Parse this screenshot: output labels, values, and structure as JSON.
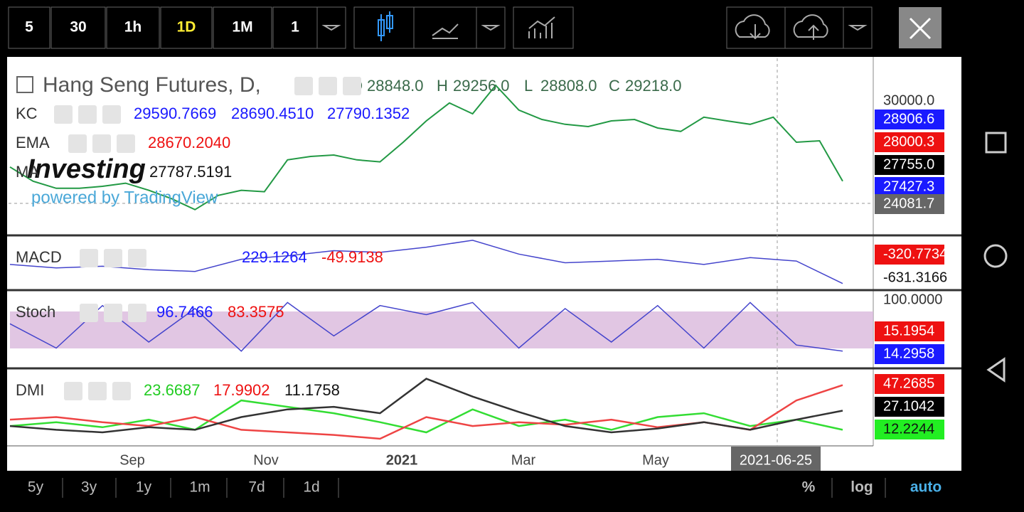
{
  "toolbar": {
    "intervals": [
      "5",
      "30",
      "1h",
      "1D",
      "1M",
      "1"
    ]
  },
  "legend": {
    "symbol": "Hang Seng Futures, D,",
    "ohlc": [
      [
        "O",
        "28848.0"
      ],
      [
        "H",
        "29256.0"
      ],
      [
        "L",
        "28808.0"
      ],
      [
        "C",
        "29218.0"
      ]
    ]
  },
  "indicators": {
    "kc": {
      "name": "KC",
      "values": [
        "29590.7669",
        "28690.4510",
        "27790.1352"
      ]
    },
    "ema": {
      "name": "EMA",
      "values": [
        "28670.2040"
      ]
    },
    "ma": {
      "name": "MA",
      "values": [
        "27787.5191"
      ]
    },
    "macd": {
      "name": "MACD",
      "values": [
        "229.1264",
        "-49.9138"
      ]
    },
    "stoch": {
      "name": "Stoch",
      "values": [
        "96.7466",
        "83.3575"
      ]
    },
    "dmi": {
      "name": "DMI",
      "values": [
        "23.6687",
        "17.9902",
        "11.1758"
      ]
    }
  },
  "watermark": {
    "brand": "Investing",
    "tagline": "powered by TradingView"
  },
  "price_scale": {
    "main": [
      "30000.0",
      "28906.6",
      "28000.3",
      "27755.0",
      "27427.3",
      "24081.7"
    ],
    "macd": [
      "-320.7734",
      "-631.3166"
    ],
    "stoch": [
      "100.0000",
      "15.1954",
      "14.2958"
    ],
    "dmi": [
      "47.2685",
      "27.1042",
      "12.2244"
    ]
  },
  "time_axis": {
    "labels": [
      "Sep",
      "Nov",
      "2021",
      "Mar",
      "May"
    ],
    "crosshair": "2021-06-25"
  },
  "range_bar": {
    "ranges": [
      "5y",
      "3y",
      "1y",
      "1m",
      "7d",
      "1d"
    ],
    "options": [
      "%",
      "log",
      "auto"
    ]
  },
  "panels": {
    "price": {
      "ylim": [
        25300,
        31500
      ],
      "close": [
        27680,
        27180,
        26930,
        26930,
        27000,
        27110,
        26860,
        26560,
        26180,
        26680,
        26860,
        26810,
        27930,
        28050,
        28100,
        27930,
        27860,
        28550,
        29300,
        29930,
        29550,
        30550,
        29680,
        29350,
        29180,
        29100,
        29300,
        29350,
        29050,
        28930,
        29430,
        29300,
        29180,
        29430,
        28550,
        28600,
        27180
      ]
    },
    "macd": {
      "ylim": [
        -800,
        700
      ],
      "values": [
        -100,
        -200,
        -150,
        -250,
        -300,
        50,
        150,
        300,
        250,
        400,
        600,
        200,
        -50,
        0,
        50,
        -100,
        100,
        0,
        -650
      ]
    },
    "stoch": {
      "ylim": [
        -11,
        113
      ],
      "values": [
        60,
        20,
        90,
        30,
        85,
        15,
        95,
        40,
        90,
        75,
        95,
        20,
        85,
        30,
        90,
        20,
        95,
        25,
        15
      ]
    },
    "dmi": {
      "ylim": [
        0,
        59
      ],
      "series": [
        {
          "color": "#33dd33",
          "values": [
            15,
            18,
            14,
            20,
            12,
            35,
            30,
            25,
            18,
            10,
            28,
            15,
            20,
            12,
            22,
            25,
            15,
            20,
            12
          ]
        },
        {
          "color": "#ee4444",
          "values": [
            20,
            22,
            18,
            15,
            22,
            12,
            10,
            8,
            5,
            22,
            15,
            18,
            16,
            20,
            14,
            18,
            12,
            35,
            47
          ]
        },
        {
          "color": "#333333",
          "values": [
            15,
            12,
            10,
            14,
            12,
            22,
            28,
            30,
            25,
            52,
            38,
            26,
            15,
            10,
            13,
            18,
            12,
            20,
            27
          ]
        }
      ]
    }
  }
}
